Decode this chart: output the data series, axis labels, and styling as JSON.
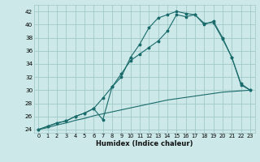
{
  "xlabel": "Humidex (Indice chaleur)",
  "background_color": "#cce8e8",
  "grid_color": "#a0c8c8",
  "line_color": "#1a6b6b",
  "xticks": [
    0,
    1,
    2,
    3,
    4,
    5,
    6,
    7,
    8,
    9,
    10,
    11,
    12,
    13,
    14,
    15,
    16,
    17,
    18,
    19,
    20,
    21,
    22,
    23
  ],
  "yticks": [
    24,
    26,
    28,
    30,
    32,
    34,
    36,
    38,
    40,
    42
  ],
  "line1_x": [
    0,
    1,
    2,
    3,
    4,
    5,
    6,
    7,
    8,
    9,
    10,
    11,
    12,
    13,
    14,
    15,
    16,
    17,
    18,
    19,
    20,
    21,
    22,
    23
  ],
  "line1_y": [
    24,
    24.5,
    25,
    25.3,
    26.0,
    26.5,
    27.2,
    25.5,
    30.5,
    32.5,
    34.5,
    35.5,
    36.5,
    37.5,
    39.0,
    41.5,
    41.2,
    41.5,
    40.0,
    40.5,
    38.0,
    35.0,
    31.0,
    30.0
  ],
  "line2_x": [
    0,
    1,
    2,
    3,
    4,
    5,
    6,
    7,
    8,
    9,
    10,
    11,
    12,
    13,
    14,
    15,
    16,
    17,
    18,
    19,
    20,
    21,
    22,
    23
  ],
  "line2_y": [
    24,
    24.5,
    25,
    25.3,
    26.0,
    26.5,
    27.2,
    28.8,
    30.5,
    32.0,
    35.0,
    37.0,
    39.5,
    41.0,
    41.5,
    42.0,
    41.7,
    41.5,
    40.2,
    40.3,
    37.8,
    35.0,
    30.8,
    30.0
  ],
  "line3_x": [
    0,
    1,
    2,
    3,
    4,
    5,
    6,
    7,
    8,
    9,
    10,
    11,
    12,
    13,
    14,
    15,
    16,
    17,
    18,
    19,
    20,
    21,
    22,
    23
  ],
  "line3_y": [
    24,
    24.3,
    24.7,
    25.0,
    25.4,
    25.7,
    26.1,
    26.4,
    26.7,
    27.0,
    27.3,
    27.6,
    27.9,
    28.2,
    28.5,
    28.7,
    28.9,
    29.1,
    29.3,
    29.5,
    29.7,
    29.8,
    29.9,
    30.0
  ]
}
